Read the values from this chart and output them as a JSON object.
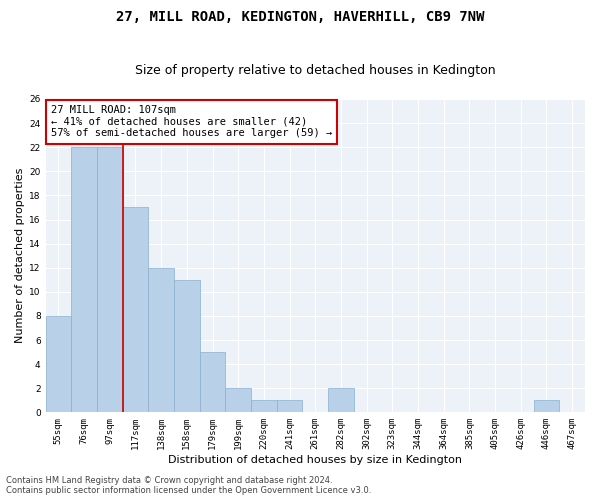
{
  "title": "27, MILL ROAD, KEDINGTON, HAVERHILL, CB9 7NW",
  "subtitle": "Size of property relative to detached houses in Kedington",
  "xlabel": "Distribution of detached houses by size in Kedington",
  "ylabel": "Number of detached properties",
  "categories": [
    "55sqm",
    "76sqm",
    "97sqm",
    "117sqm",
    "138sqm",
    "158sqm",
    "179sqm",
    "199sqm",
    "220sqm",
    "241sqm",
    "261sqm",
    "282sqm",
    "302sqm",
    "323sqm",
    "344sqm",
    "364sqm",
    "385sqm",
    "405sqm",
    "426sqm",
    "446sqm",
    "467sqm"
  ],
  "values": [
    8,
    22,
    22,
    17,
    12,
    11,
    5,
    2,
    1,
    1,
    0,
    2,
    0,
    0,
    0,
    0,
    0,
    0,
    0,
    1,
    0
  ],
  "bar_color": "#b8d0e8",
  "bar_edgecolor": "#8ab0d0",
  "property_line_x": 2.5,
  "property_line_color": "#cc0000",
  "annotation_text": "27 MILL ROAD: 107sqm\n← 41% of detached houses are smaller (42)\n57% of semi-detached houses are larger (59) →",
  "annotation_box_edgecolor": "#cc0000",
  "ylim": [
    0,
    26
  ],
  "yticks": [
    0,
    2,
    4,
    6,
    8,
    10,
    12,
    14,
    16,
    18,
    20,
    22,
    24,
    26
  ],
  "footer_line1": "Contains HM Land Registry data © Crown copyright and database right 2024.",
  "footer_line2": "Contains public sector information licensed under the Open Government Licence v3.0.",
  "bg_color": "#edf2f9",
  "grid_color": "#ffffff",
  "title_fontsize": 10,
  "subtitle_fontsize": 9,
  "xlabel_fontsize": 8,
  "ylabel_fontsize": 8,
  "tick_fontsize": 6.5,
  "annotation_fontsize": 7.5,
  "footer_fontsize": 6
}
